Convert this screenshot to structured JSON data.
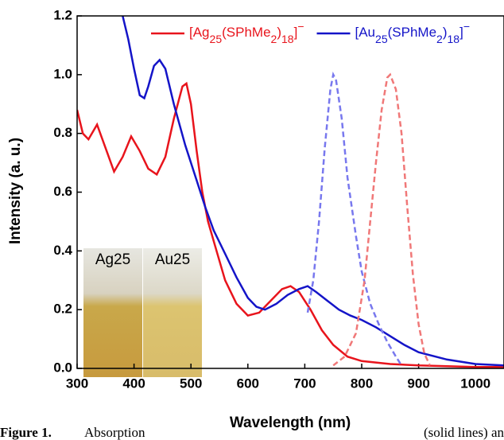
{
  "chart_data": {
    "type": "line",
    "xlabel": "Wavelength (nm)",
    "ylabel": "Intensity (a. u.)",
    "xlim": [
      300,
      1050
    ],
    "xticks": [
      300,
      400,
      500,
      600,
      700,
      800,
      900,
      1000
    ],
    "ylim": [
      0,
      1.2
    ],
    "yticks": [
      {
        "value": 0,
        "label": "0.0"
      },
      0.2,
      0.4,
      0.6,
      0.8,
      {
        "value": 1,
        "label": "1.0"
      },
      1.2
    ],
    "legend": "top-right",
    "series": [
      {
        "name": "[Ag25(SPhMe2)18]−",
        "color": "#e8141c",
        "style": "solid",
        "x": [
          300,
          310,
          320,
          335,
          350,
          365,
          380,
          395,
          410,
          425,
          440,
          455,
          470,
          485,
          492,
          500,
          510,
          520,
          530,
          545,
          560,
          580,
          600,
          620,
          640,
          660,
          675,
          690,
          710,
          730,
          750,
          775,
          800,
          850,
          900,
          1000,
          1050
        ],
        "values": [
          0.88,
          0.8,
          0.78,
          0.83,
          0.75,
          0.67,
          0.72,
          0.79,
          0.74,
          0.68,
          0.66,
          0.72,
          0.85,
          0.96,
          0.97,
          0.9,
          0.74,
          0.6,
          0.5,
          0.4,
          0.3,
          0.22,
          0.18,
          0.19,
          0.23,
          0.27,
          0.28,
          0.26,
          0.2,
          0.13,
          0.08,
          0.04,
          0.025,
          0.015,
          0.01,
          0.005,
          0.005
        ]
      },
      {
        "name": "[Au25(SPhMe2)18]−",
        "color": "#1414c8",
        "style": "solid",
        "x": [
          380,
          390,
          400,
          410,
          418,
          425,
          435,
          445,
          455,
          470,
          490,
          510,
          525,
          540,
          560,
          580,
          600,
          615,
          630,
          650,
          670,
          690,
          705,
          720,
          740,
          760,
          780,
          800,
          825,
          850,
          875,
          900,
          950,
          1000,
          1050
        ],
        "values": [
          1.2,
          1.12,
          1.02,
          0.93,
          0.92,
          0.96,
          1.03,
          1.05,
          1.02,
          0.9,
          0.76,
          0.64,
          0.55,
          0.47,
          0.39,
          0.31,
          0.24,
          0.21,
          0.2,
          0.22,
          0.25,
          0.27,
          0.28,
          0.26,
          0.23,
          0.2,
          0.18,
          0.165,
          0.14,
          0.11,
          0.08,
          0.055,
          0.03,
          0.015,
          0.01
        ]
      },
      {
        "color": "#7878ee",
        "style": "dashed",
        "x": [
          705,
          715,
          725,
          735,
          745,
          750,
          755,
          765,
          775,
          790,
          800,
          815,
          830,
          845,
          860,
          870
        ],
        "values": [
          0.19,
          0.3,
          0.5,
          0.75,
          0.95,
          1.0,
          0.98,
          0.85,
          0.65,
          0.45,
          0.33,
          0.22,
          0.15,
          0.09,
          0.04,
          0.01
        ]
      },
      {
        "color": "#f07878",
        "style": "dashed",
        "x": [
          750,
          770,
          790,
          805,
          815,
          825,
          835,
          845,
          850,
          860,
          870,
          880,
          890,
          900,
          910,
          920
        ],
        "values": [
          0.01,
          0.04,
          0.12,
          0.3,
          0.5,
          0.7,
          0.88,
          0.99,
          1.0,
          0.95,
          0.8,
          0.55,
          0.32,
          0.15,
          0.05,
          0.01
        ]
      }
    ],
    "inset": {
      "labels": [
        "Ag25",
        "Au25"
      ]
    },
    "caption": {
      "label": "Figure 1.",
      "start": "Absorption",
      "end": "(solid lines) an"
    }
  }
}
